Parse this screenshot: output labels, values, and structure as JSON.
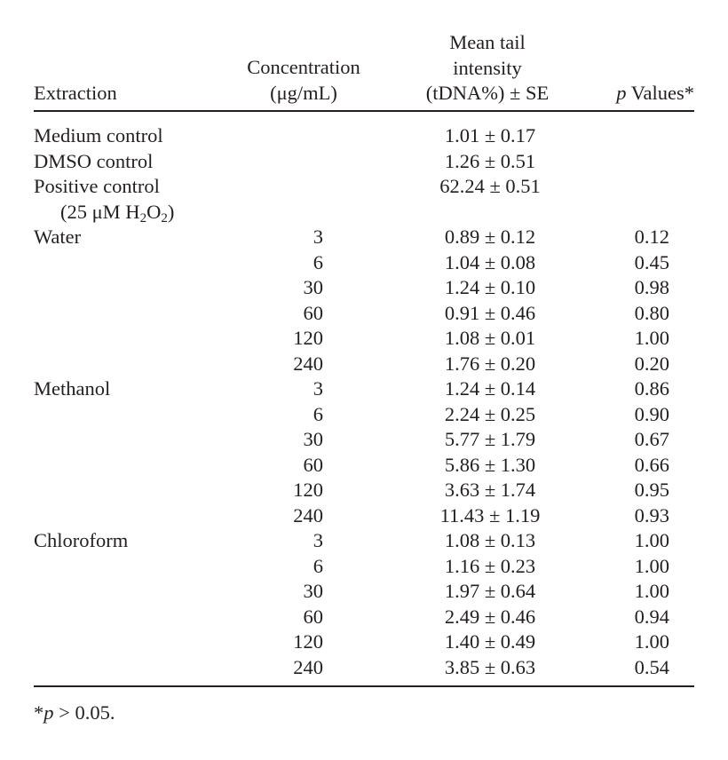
{
  "header": {
    "extraction": "Extraction",
    "concentration_line1": "Concentration",
    "concentration_line2": "(μg/mL)",
    "tail_line1": "Mean tail",
    "tail_line2": "intensity",
    "tail_line3": "(tDNA%) ± SE",
    "p_italic": "p",
    "p_rest": " Values*"
  },
  "rows": [
    {
      "label": "Medium control",
      "conc": "",
      "mean": "1.01 ± 0.17",
      "p": ""
    },
    {
      "label": "DMSO control",
      "conc": "",
      "mean": "1.26 ± 0.51",
      "p": ""
    },
    {
      "label": "Positive control",
      "conc": "",
      "mean": "62.24 ± 0.51",
      "p": ""
    },
    {
      "label": "Water",
      "conc": "3",
      "mean": "0.89 ± 0.12",
      "p": "0.12"
    },
    {
      "label": "",
      "conc": "6",
      "mean": "1.04 ± 0.08",
      "p": "0.45"
    },
    {
      "label": "",
      "conc": "30",
      "mean": "1.24 ± 0.10",
      "p": "0.98"
    },
    {
      "label": "",
      "conc": "60",
      "mean": "0.91 ± 0.46",
      "p": "0.80"
    },
    {
      "label": "",
      "conc": "120",
      "mean": "1.08 ± 0.01",
      "p": "1.00"
    },
    {
      "label": "",
      "conc": "240",
      "mean": "1.76 ± 0.20",
      "p": "0.20"
    },
    {
      "label": "Methanol",
      "conc": "3",
      "mean": "1.24 ± 0.14",
      "p": "0.86"
    },
    {
      "label": "",
      "conc": "6",
      "mean": "2.24 ± 0.25",
      "p": "0.90"
    },
    {
      "label": "",
      "conc": "30",
      "mean": "5.77 ± 1.79",
      "p": "0.67"
    },
    {
      "label": "",
      "conc": "60",
      "mean": "5.86 ± 1.30",
      "p": "0.66"
    },
    {
      "label": "",
      "conc": "120",
      "mean": "3.63 ± 1.74",
      "p": "0.95"
    },
    {
      "label": "",
      "conc": "240",
      "mean": "11.43 ± 1.19",
      "p": "0.93"
    },
    {
      "label": "Chloroform",
      "conc": "3",
      "mean": "1.08 ± 0.13",
      "p": "1.00"
    },
    {
      "label": "",
      "conc": "6",
      "mean": "1.16 ± 0.23",
      "p": "1.00"
    },
    {
      "label": "",
      "conc": "30",
      "mean": "1.97 ± 0.64",
      "p": "1.00"
    },
    {
      "label": "",
      "conc": "60",
      "mean": "2.49 ± 0.46",
      "p": "0.94"
    },
    {
      "label": "",
      "conc": "120",
      "mean": "1.40 ± 0.49",
      "p": "1.00"
    },
    {
      "label": "",
      "conc": "240",
      "mean": "3.85 ± 0.63",
      "p": "0.54"
    }
  ],
  "positive_control_detail": {
    "prefix": "(25 μM H",
    "sub1": "2",
    "mid": "O",
    "sub2": "2",
    "suffix": ")"
  },
  "footnote": {
    "star": "*",
    "p_italic": "p",
    "rest": " > 0.05."
  }
}
